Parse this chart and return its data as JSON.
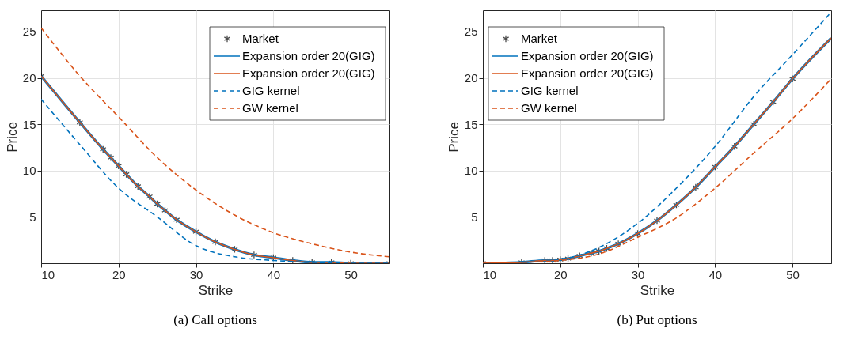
{
  "chart_data": [
    {
      "type": "line",
      "xlabel": "Strike",
      "ylabel": "Price",
      "xlim": [
        10,
        55
      ],
      "ylim": [
        0,
        27.3
      ],
      "xticks": [
        10,
        20,
        30,
        40,
        50
      ],
      "yticks": [
        5,
        10,
        15,
        20,
        25
      ],
      "grid": true,
      "legend": "top right",
      "annotations": [
        "(a)  Call options"
      ],
      "series": [
        {
          "name": "Market",
          "type": "scatter",
          "marker": "cross",
          "color": "#000000",
          "x": [
            10,
            15,
            18,
            19,
            20,
            21,
            22.5,
            24,
            25,
            26,
            27.5,
            30,
            32.5,
            35,
            37.5,
            40,
            42.5,
            45,
            47.5,
            50,
            55
          ],
          "values": [
            20.2,
            15.2,
            12.3,
            11.4,
            10.5,
            9.6,
            8.3,
            7.2,
            6.4,
            5.7,
            4.7,
            3.4,
            2.3,
            1.5,
            0.9,
            0.6,
            0.3,
            0.1,
            0.1,
            0.0,
            0.0
          ]
        },
        {
          "name": "Expansion order 20(GIG)",
          "color": "#0072bd",
          "line_style": "solid",
          "x": [
            10,
            15,
            18,
            19,
            20,
            21,
            22.5,
            24,
            25,
            26,
            27.5,
            30,
            32.5,
            35,
            37.5,
            40,
            42.5,
            45,
            47.5,
            50,
            55
          ],
          "values": [
            20.2,
            15.2,
            12.3,
            11.4,
            10.5,
            9.6,
            8.3,
            7.2,
            6.4,
            5.7,
            4.7,
            3.4,
            2.3,
            1.5,
            0.9,
            0.6,
            0.3,
            0.1,
            0.1,
            0.0,
            0.0
          ]
        },
        {
          "name": "Expansion order 20(GIG)",
          "color": "#d95319",
          "line_style": "solid",
          "x": [
            10,
            15,
            18,
            19,
            20,
            21,
            22.5,
            24,
            25,
            26,
            27.5,
            30,
            32.5,
            35,
            37.5,
            40,
            42.5,
            45,
            47.5,
            50,
            55
          ],
          "values": [
            20.2,
            15.2,
            12.3,
            11.4,
            10.5,
            9.6,
            8.3,
            7.2,
            6.4,
            5.7,
            4.7,
            3.4,
            2.3,
            1.5,
            0.9,
            0.6,
            0.3,
            0.1,
            0.1,
            0.0,
            0.0
          ]
        },
        {
          "name": "GIG kernel",
          "color": "#0072bd",
          "line_style": "dashed",
          "x": [
            10,
            15,
            20,
            25,
            30,
            35,
            40,
            45,
            50,
            55
          ],
          "values": [
            17.7,
            12.8,
            8.1,
            5.0,
            1.9,
            0.7,
            0.3,
            0.1,
            0.0,
            0.0
          ]
        },
        {
          "name": "GW kernel",
          "color": "#d95319",
          "line_style": "dashed",
          "x": [
            10,
            15,
            20,
            25,
            30,
            35,
            40,
            45,
            50,
            55
          ],
          "values": [
            25.4,
            20.2,
            15.8,
            11.4,
            7.9,
            5.2,
            3.3,
            2.1,
            1.2,
            0.7
          ]
        }
      ]
    },
    {
      "type": "line",
      "xlabel": "Strike",
      "ylabel": "Price",
      "xlim": [
        10,
        55
      ],
      "ylim": [
        0,
        27.3
      ],
      "xticks": [
        10,
        20,
        30,
        40,
        50
      ],
      "yticks": [
        5,
        10,
        15,
        20,
        25
      ],
      "grid": true,
      "legend": "top left",
      "annotations": [
        "(b)  Put options"
      ],
      "series": [
        {
          "name": "Market",
          "type": "scatter",
          "marker": "cross",
          "color": "#000000",
          "x": [
            10,
            15,
            18,
            19,
            20,
            21,
            22.5,
            24,
            25,
            26,
            27.5,
            30,
            32.5,
            35,
            37.5,
            40,
            42.5,
            45,
            47.5,
            50
          ],
          "values": [
            0.0,
            0.1,
            0.3,
            0.3,
            0.4,
            0.5,
            0.8,
            1.1,
            1.3,
            1.6,
            2.1,
            3.2,
            4.6,
            6.3,
            8.2,
            10.4,
            12.6,
            15.0,
            17.4,
            19.9
          ]
        },
        {
          "name": "Expansion order 20(GIG)",
          "color": "#0072bd",
          "line_style": "solid",
          "x": [
            10,
            15,
            18,
            19,
            20,
            21,
            22.5,
            24,
            25,
            26,
            27.5,
            30,
            32.5,
            35,
            37.5,
            40,
            42.5,
            45,
            47.5,
            50,
            55
          ],
          "values": [
            0.0,
            0.1,
            0.3,
            0.3,
            0.4,
            0.5,
            0.8,
            1.1,
            1.3,
            1.6,
            2.1,
            3.2,
            4.6,
            6.3,
            8.2,
            10.4,
            12.6,
            15.0,
            17.4,
            19.9,
            24.3
          ]
        },
        {
          "name": "Expansion order 20(GIG)",
          "color": "#d95319",
          "line_style": "solid",
          "x": [
            10,
            15,
            18,
            19,
            20,
            21,
            22.5,
            24,
            25,
            26,
            27.5,
            30,
            32.5,
            35,
            37.5,
            40,
            42.5,
            45,
            47.5,
            50,
            55
          ],
          "values": [
            0.0,
            0.1,
            0.3,
            0.3,
            0.4,
            0.5,
            0.8,
            1.1,
            1.3,
            1.6,
            2.1,
            3.2,
            4.6,
            6.3,
            8.2,
            10.4,
            12.6,
            15.0,
            17.4,
            19.9,
            24.3
          ]
        },
        {
          "name": "GIG kernel",
          "color": "#0072bd",
          "line_style": "dashed",
          "x": [
            10,
            15,
            20,
            25,
            30,
            35,
            40,
            45,
            50,
            55
          ],
          "values": [
            0.0,
            0.1,
            0.4,
            1.7,
            4.3,
            8.1,
            12.6,
            18.0,
            22.5,
            27.1
          ]
        },
        {
          "name": "GW kernel",
          "color": "#d95319",
          "line_style": "dashed",
          "x": [
            10,
            15,
            20,
            25,
            30,
            35,
            40,
            45,
            50,
            55
          ],
          "values": [
            0.0,
            0.1,
            0.3,
            1.0,
            2.8,
            4.9,
            8.1,
            11.9,
            15.6,
            19.9
          ]
        }
      ]
    }
  ]
}
